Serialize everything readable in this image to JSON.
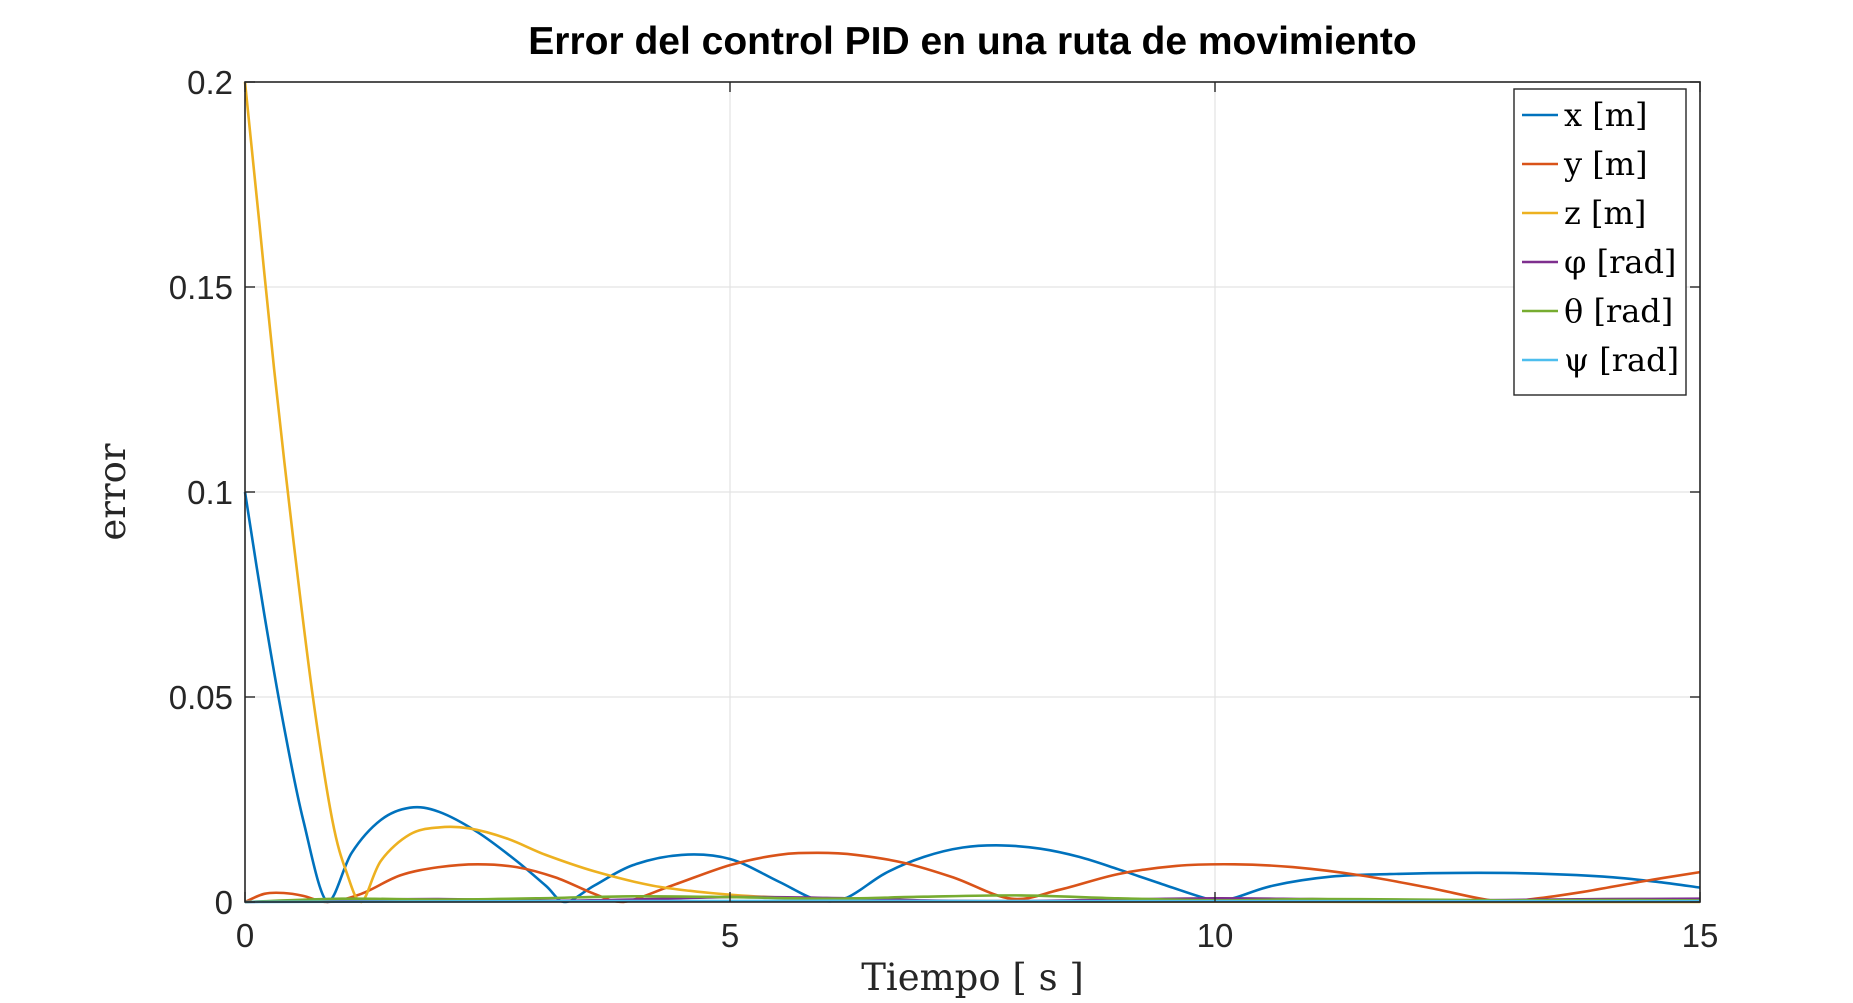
{
  "chart_data": {
    "type": "line",
    "title": "Error del control PID en una ruta de movimiento",
    "xlabel": "Tiempo [ s ]",
    "ylabel": "error",
    "xlim": [
      0,
      15
    ],
    "ylim": [
      0,
      0.2
    ],
    "xticks": [
      0,
      5,
      10,
      15
    ],
    "xtick_labels": [
      "0",
      "5",
      "10",
      "15"
    ],
    "yticks": [
      0,
      0.05,
      0.1,
      0.15,
      0.2
    ],
    "ytick_labels": [
      "0",
      "0.05",
      "0.1",
      "0.15",
      "0.2"
    ],
    "grid": true,
    "legend_position": "top-right",
    "series": [
      {
        "name": "x [m]",
        "color": "#0072BD",
        "x": [
          0,
          0.2,
          0.4,
          0.6,
          0.85,
          1.1,
          1.4,
          1.7,
          2.0,
          2.4,
          2.8,
          3.1,
          3.3,
          3.6,
          4.0,
          4.5,
          5.0,
          5.5,
          5.9,
          6.2,
          6.6,
          7.0,
          7.4,
          7.8,
          8.2,
          8.6,
          9.0,
          9.5,
          10.0,
          10.2,
          10.6,
          11.2,
          11.8,
          12.5,
          13.2,
          14.0,
          14.6,
          15.0
        ],
        "y": [
          0.1,
          0.07,
          0.043,
          0.02,
          0.0,
          0.012,
          0.02,
          0.023,
          0.022,
          0.017,
          0.01,
          0.004,
          0.0,
          0.004,
          0.009,
          0.0115,
          0.0105,
          0.005,
          0.0005,
          0.001,
          0.007,
          0.011,
          0.0133,
          0.0138,
          0.013,
          0.011,
          0.008,
          0.004,
          0.0003,
          0.001,
          0.004,
          0.0062,
          0.0068,
          0.0071,
          0.007,
          0.0062,
          0.0048,
          0.0035
        ]
      },
      {
        "name": "y [m]",
        "color": "#D95319",
        "x": [
          0,
          0.2,
          0.4,
          0.6,
          0.85,
          1.2,
          1.6,
          2.0,
          2.4,
          2.8,
          3.2,
          3.6,
          3.9,
          4.4,
          5.0,
          5.5,
          5.9,
          6.3,
          6.8,
          7.3,
          7.9,
          8.4,
          9.0,
          9.6,
          10.2,
          10.8,
          11.5,
          12.2,
          12.9,
          13.3,
          13.8,
          14.4,
          15.0
        ],
        "y": [
          0.0,
          0.002,
          0.0022,
          0.0015,
          0.0,
          0.002,
          0.0065,
          0.0085,
          0.0092,
          0.0085,
          0.006,
          0.002,
          0.0,
          0.004,
          0.009,
          0.0115,
          0.012,
          0.0115,
          0.0095,
          0.006,
          0.0008,
          0.003,
          0.0068,
          0.0088,
          0.0092,
          0.0085,
          0.0065,
          0.0035,
          0.0002,
          0.0008,
          0.0025,
          0.005,
          0.0073
        ]
      },
      {
        "name": "z [m]",
        "color": "#EDB120",
        "x": [
          0,
          0.15,
          0.3,
          0.5,
          0.7,
          0.9,
          1.05,
          1.2,
          1.4,
          1.7,
          2.0,
          2.3,
          2.7,
          3.1,
          3.6,
          4.2,
          4.8,
          5.4,
          6.0,
          7.0,
          8.0,
          9.0,
          10.0,
          12.0,
          15.0
        ],
        "y": [
          0.2,
          0.165,
          0.13,
          0.088,
          0.05,
          0.02,
          0.007,
          0.0,
          0.01,
          0.0165,
          0.0182,
          0.018,
          0.0155,
          0.0115,
          0.0075,
          0.004,
          0.0022,
          0.0012,
          0.0007,
          0.0003,
          0.0002,
          0.0001,
          0.0001,
          0.0,
          0.0
        ]
      },
      {
        "name": "φ [rad]",
        "color": "#7E2F8E",
        "x": [
          0,
          1.0,
          2.0,
          3.0,
          4.0,
          5.0,
          6.0,
          7.0,
          8.0,
          9.0,
          10.0,
          11.0,
          12.0,
          13.0,
          14.0,
          15.0
        ],
        "y": [
          0.0,
          0.0005,
          0.0007,
          0.0003,
          0.0006,
          0.0012,
          0.001,
          0.0004,
          0.0002,
          0.0006,
          0.0009,
          0.0007,
          0.0004,
          0.0005,
          0.0007,
          0.0008
        ]
      },
      {
        "name": "θ [rad]",
        "color": "#77AC30",
        "x": [
          0,
          1.0,
          2.0,
          3.0,
          4.0,
          5.0,
          6.0,
          7.0,
          8.0,
          9.0,
          10.0,
          11.0,
          12.0,
          13.0,
          14.0,
          15.0
        ],
        "y": [
          0.0,
          0.0008,
          0.0006,
          0.0009,
          0.0014,
          0.0012,
          0.0008,
          0.0013,
          0.0016,
          0.0009,
          0.0004,
          0.0007,
          0.0006,
          0.0004,
          0.0005,
          0.0004
        ]
      },
      {
        "name": "ψ [rad]",
        "color": "#4DBEEE",
        "x": [
          0,
          3.0,
          6.0,
          9.0,
          12.0,
          15.0
        ],
        "y": [
          0.0,
          0.0002,
          0.0003,
          0.0002,
          0.0002,
          0.0002
        ]
      }
    ]
  }
}
